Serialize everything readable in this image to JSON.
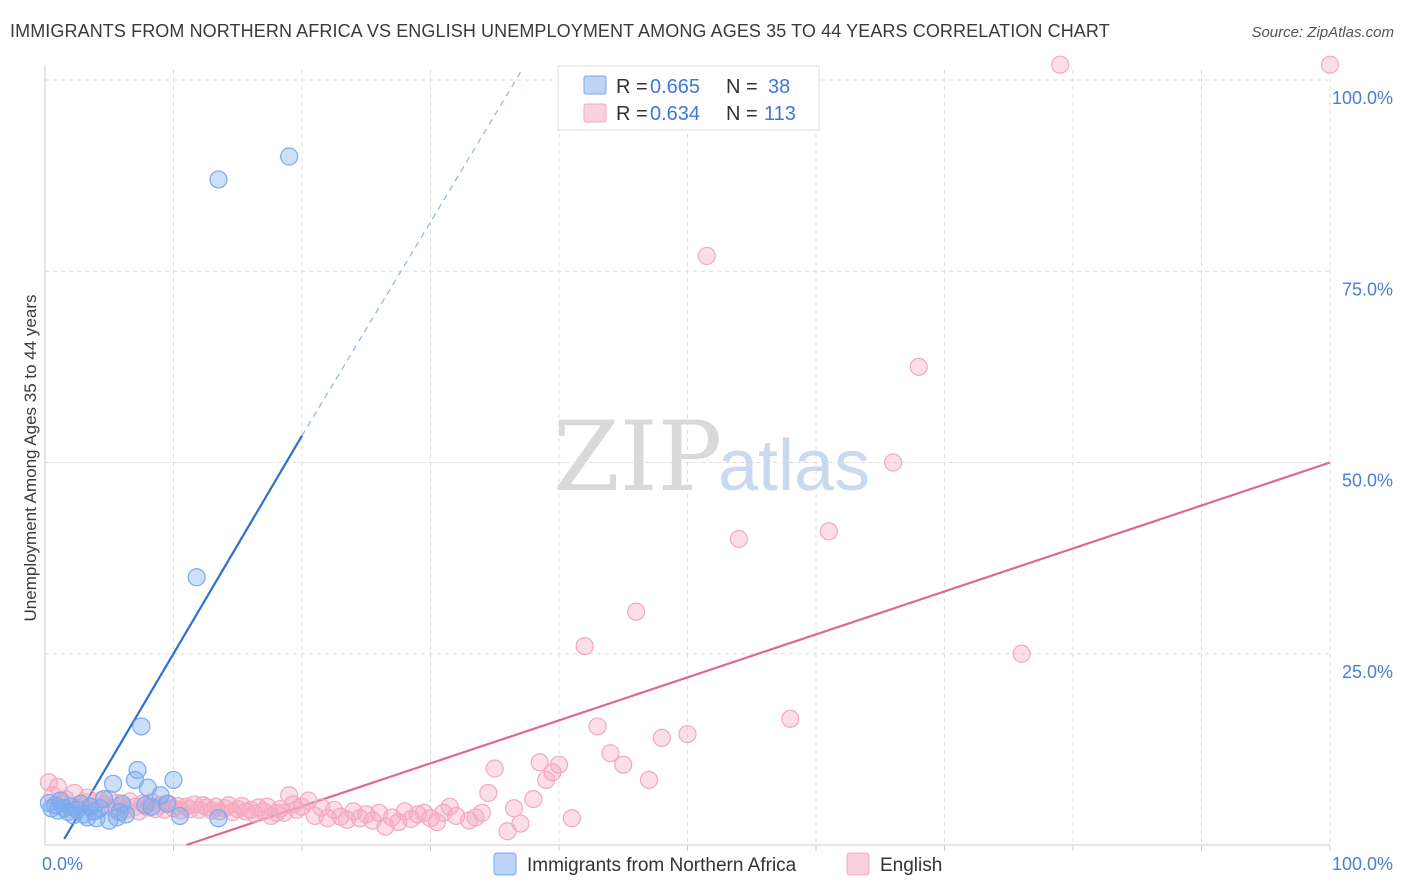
{
  "title": "IMMIGRANTS FROM NORTHERN AFRICA VS ENGLISH UNEMPLOYMENT AMONG AGES 35 TO 44 YEARS CORRELATION CHART",
  "source": "Source: ZipAtlas.com",
  "watermark": {
    "zip": "ZIP",
    "atlas": "atlas"
  },
  "chart_data": {
    "type": "scatter",
    "ylabel": "Unemployment Among Ages 35 to 44 years",
    "x_range": [
      0,
      100
    ],
    "y_range": [
      0,
      100
    ],
    "x_tick_labels": [
      {
        "value": 0,
        "label": "0.0%"
      },
      {
        "value": 100,
        "label": "100.0%"
      }
    ],
    "y_tick_labels": [
      {
        "value": 25,
        "label": "25.0%"
      },
      {
        "value": 50,
        "label": "50.0%"
      },
      {
        "value": 75,
        "label": "75.0%"
      },
      {
        "value": 100,
        "label": "100.0%"
      }
    ],
    "grid": true,
    "legend_position": "top-center",
    "series": [
      {
        "name": "Immigrants from Northern Africa",
        "r_label": "R =",
        "r_value": "0.665",
        "n_label": "N =",
        "n_value": "38",
        "color": "#7aaaf0",
        "line_color": "#2f6fd1",
        "trend": {
          "x_solid": [
            1.5,
            20
          ],
          "y_solid": [
            0.8,
            53.5
          ],
          "x_dashed": [
            20,
            37
          ],
          "y_dashed": [
            53.5,
            101
          ]
        },
        "points": [
          [
            0.3,
            5.5
          ],
          [
            0.5,
            4.8
          ],
          [
            0.8,
            5.2
          ],
          [
            1.0,
            4.5
          ],
          [
            1.2,
            5.8
          ],
          [
            1.5,
            4.8
          ],
          [
            1.8,
            4.3
          ],
          [
            2.0,
            5.0
          ],
          [
            2.2,
            3.9
          ],
          [
            2.5,
            4.6
          ],
          [
            2.8,
            5.4
          ],
          [
            3.0,
            4.0
          ],
          [
            3.3,
            3.6
          ],
          [
            3.5,
            5.0
          ],
          [
            3.8,
            4.4
          ],
          [
            4.0,
            3.5
          ],
          [
            4.3,
            4.8
          ],
          [
            4.6,
            6.0
          ],
          [
            5.0,
            3.2
          ],
          [
            5.3,
            8.0
          ],
          [
            5.6,
            3.6
          ],
          [
            5.8,
            4.3
          ],
          [
            6.0,
            5.4
          ],
          [
            6.3,
            4.0
          ],
          [
            7.0,
            8.5
          ],
          [
            7.2,
            9.8
          ],
          [
            7.5,
            15.5
          ],
          [
            7.8,
            5.2
          ],
          [
            8.0,
            7.5
          ],
          [
            8.3,
            5.0
          ],
          [
            9.0,
            6.5
          ],
          [
            9.5,
            5.4
          ],
          [
            10.0,
            8.5
          ],
          [
            10.5,
            3.8
          ],
          [
            11.8,
            35.0
          ],
          [
            13.5,
            3.5
          ],
          [
            13.5,
            87.0
          ],
          [
            19.0,
            90.0
          ]
        ]
      },
      {
        "name": "English",
        "r_label": "R =",
        "r_value": "0.634",
        "n_label": "N =",
        "n_value": "113",
        "color": "#f4a8c0",
        "line_color": "#e06890",
        "trend": {
          "x": [
            11,
            100
          ],
          "y": [
            0,
            50
          ]
        },
        "points": [
          [
            0.3,
            8.2
          ],
          [
            0.6,
            6.5
          ],
          [
            1.0,
            7.6
          ],
          [
            1.3,
            5.4
          ],
          [
            1.6,
            6.0
          ],
          [
            2.0,
            5.2
          ],
          [
            2.3,
            6.8
          ],
          [
            2.6,
            4.8
          ],
          [
            3.0,
            5.6
          ],
          [
            3.3,
            6.2
          ],
          [
            3.6,
            5.0
          ],
          [
            4.0,
            4.5
          ],
          [
            4.3,
            5.8
          ],
          [
            4.6,
            5.3
          ],
          [
            5.0,
            6.0
          ],
          [
            5.3,
            4.8
          ],
          [
            5.6,
            5.5
          ],
          [
            6.0,
            5.1
          ],
          [
            6.3,
            4.6
          ],
          [
            6.6,
            5.7
          ],
          [
            7.0,
            5.0
          ],
          [
            7.3,
            4.4
          ],
          [
            7.6,
            5.4
          ],
          [
            8.0,
            4.9
          ],
          [
            8.3,
            5.6
          ],
          [
            8.6,
            4.7
          ],
          [
            9.0,
            5.2
          ],
          [
            9.3,
            4.6
          ],
          [
            9.6,
            5.4
          ],
          [
            10.0,
            4.8
          ],
          [
            10.3,
            5.1
          ],
          [
            10.6,
            4.5
          ],
          [
            11.0,
            5.0
          ],
          [
            11.3,
            4.7
          ],
          [
            11.6,
            5.3
          ],
          [
            12.0,
            4.6
          ],
          [
            12.3,
            5.2
          ],
          [
            12.6,
            4.9
          ],
          [
            13.0,
            4.5
          ],
          [
            13.3,
            5.0
          ],
          [
            13.6,
            4.4
          ],
          [
            14.0,
            4.8
          ],
          [
            14.3,
            5.2
          ],
          [
            14.6,
            4.3
          ],
          [
            15.0,
            4.7
          ],
          [
            15.3,
            5.1
          ],
          [
            15.6,
            4.4
          ],
          [
            16.0,
            4.6
          ],
          [
            16.3,
            4.1
          ],
          [
            16.6,
            4.9
          ],
          [
            17.0,
            4.4
          ],
          [
            17.3,
            5.0
          ],
          [
            17.6,
            3.8
          ],
          [
            18.0,
            4.2
          ],
          [
            18.3,
            4.7
          ],
          [
            18.6,
            4.2
          ],
          [
            19.0,
            6.5
          ],
          [
            19.3,
            5.3
          ],
          [
            19.6,
            4.6
          ],
          [
            20.0,
            5.0
          ],
          [
            20.5,
            5.8
          ],
          [
            21.0,
            3.8
          ],
          [
            21.5,
            4.9
          ],
          [
            22.0,
            3.5
          ],
          [
            22.5,
            4.6
          ],
          [
            23.0,
            3.7
          ],
          [
            23.5,
            3.3
          ],
          [
            24.0,
            4.4
          ],
          [
            24.5,
            3.5
          ],
          [
            25.0,
            4.0
          ],
          [
            25.5,
            3.2
          ],
          [
            26.0,
            4.2
          ],
          [
            26.5,
            2.4
          ],
          [
            27.0,
            3.6
          ],
          [
            27.5,
            3.0
          ],
          [
            28.0,
            4.4
          ],
          [
            28.5,
            3.4
          ],
          [
            29.0,
            4.0
          ],
          [
            29.5,
            4.2
          ],
          [
            30.0,
            3.5
          ],
          [
            30.5,
            3.0
          ],
          [
            31.0,
            4.2
          ],
          [
            31.5,
            5.0
          ],
          [
            32.0,
            3.8
          ],
          [
            33.0,
            3.2
          ],
          [
            33.5,
            3.6
          ],
          [
            34.0,
            4.2
          ],
          [
            34.5,
            6.8
          ],
          [
            35.0,
            10.0
          ],
          [
            36.0,
            1.8
          ],
          [
            36.5,
            4.8
          ],
          [
            37.0,
            2.8
          ],
          [
            38.0,
            6.0
          ],
          [
            38.5,
            10.8
          ],
          [
            39.0,
            8.5
          ],
          [
            39.5,
            9.5
          ],
          [
            40.0,
            10.5
          ],
          [
            41.0,
            3.5
          ],
          [
            42.0,
            26.0
          ],
          [
            43.0,
            15.5
          ],
          [
            44.0,
            12.0
          ],
          [
            45.0,
            10.5
          ],
          [
            46.0,
            30.5
          ],
          [
            47.0,
            8.5
          ],
          [
            48.0,
            14.0
          ],
          [
            50.0,
            14.5
          ],
          [
            51.5,
            77.0
          ],
          [
            54.0,
            40.0
          ],
          [
            58.0,
            16.5
          ],
          [
            61.0,
            41.0
          ],
          [
            66.0,
            50.0
          ],
          [
            68.0,
            62.5
          ],
          [
            76.0,
            25.0
          ],
          [
            79.0,
            102.0
          ],
          [
            100.0,
            102.0
          ]
        ]
      }
    ]
  }
}
